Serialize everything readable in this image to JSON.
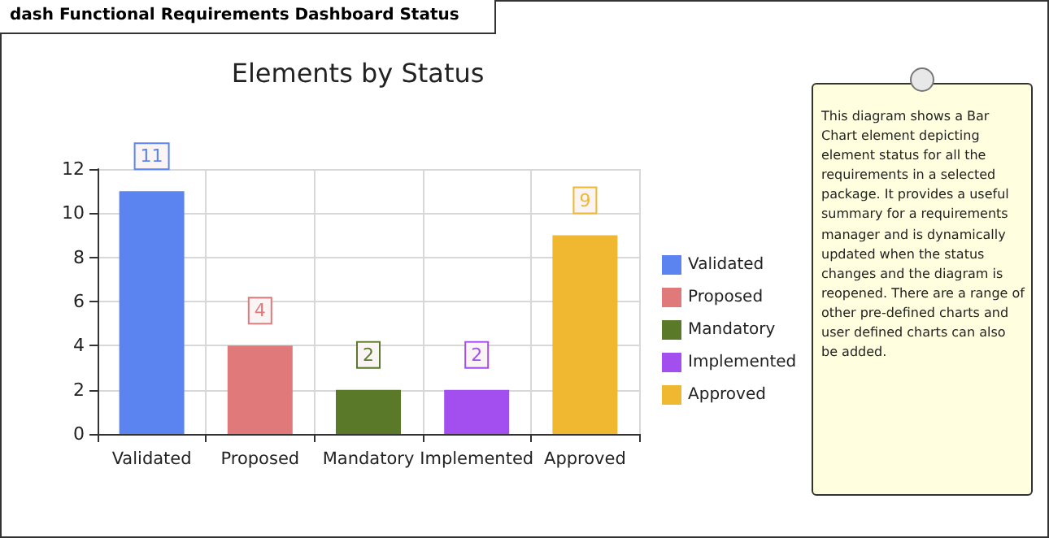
{
  "chart_data": {
    "type": "bar",
    "title": "Elements by Status",
    "categories": [
      "Validated",
      "Proposed",
      "Mandatory",
      "Implemented",
      "Approved"
    ],
    "series": [
      {
        "name": "Validated",
        "color": "#5b84f0",
        "values": [
          11,
          null,
          null,
          null,
          null
        ]
      },
      {
        "name": "Proposed",
        "color": "#e07a7a",
        "values": [
          null,
          4,
          null,
          null,
          null
        ]
      },
      {
        "name": "Mandatory",
        "color": "#5a7a2a",
        "values": [
          null,
          null,
          2,
          null,
          null
        ]
      },
      {
        "name": "Implemented",
        "color": "#a34ff0",
        "values": [
          null,
          null,
          null,
          2,
          null
        ]
      },
      {
        "name": "Approved",
        "color": "#f0b830",
        "values": [
          null,
          null,
          null,
          null,
          9
        ]
      }
    ],
    "ylim": [
      0,
      12
    ],
    "yticks": [
      0,
      2,
      4,
      6,
      8,
      10,
      12
    ],
    "grid": true,
    "legend": "right",
    "data_labels": true,
    "annotations": [
      "dash Functional Requirements Dashboard Status",
      "This diagram shows a Bar Chart element depicting element status for all the requirements in a selected package. It provides a useful summary for a requirements manager and is dynamically updated when the status changes and the diagram is reopened. There are a range of other pre-defined charts and user defined charts can also be added."
    ]
  }
}
